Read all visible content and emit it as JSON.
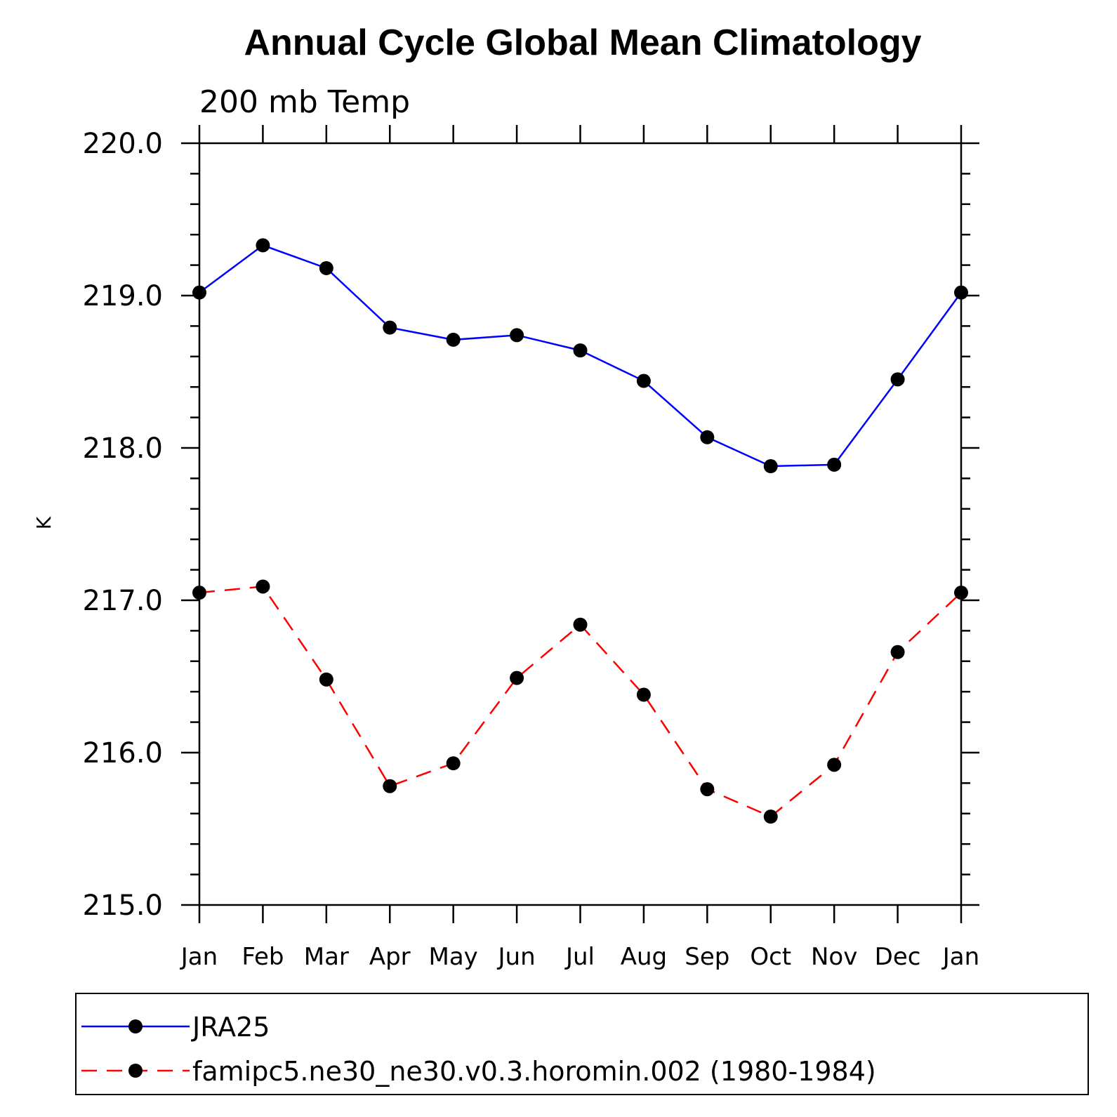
{
  "chart_data": {
    "type": "line",
    "title": "Annual Cycle Global Mean Climatology",
    "subtitle": "200 mb Temp",
    "xlabel": "",
    "ylabel": "K",
    "categories": [
      "Jan",
      "Feb",
      "Mar",
      "Apr",
      "May",
      "Jun",
      "Jul",
      "Aug",
      "Sep",
      "Oct",
      "Nov",
      "Dec",
      "Jan"
    ],
    "ylim": [
      215.0,
      220.0
    ],
    "yticks": [
      "215.0",
      "216.0",
      "217.0",
      "218.0",
      "219.0",
      "220.0"
    ],
    "grid": false,
    "legend_position": "bottom",
    "series": [
      {
        "name": "JRA25",
        "color": "#0000ff",
        "line_style": "solid",
        "marker": "filled-circle",
        "values": [
          219.02,
          219.33,
          219.18,
          218.79,
          218.71,
          218.74,
          218.64,
          218.44,
          218.07,
          217.88,
          217.89,
          218.45,
          219.02
        ]
      },
      {
        "name": "famipc5.ne30_ne30.v0.3.horomin.002 (1980-1984)",
        "color": "#ff0000",
        "line_style": "dashed",
        "marker": "filled-circle",
        "values": [
          217.05,
          217.09,
          216.48,
          215.78,
          215.93,
          216.49,
          216.84,
          216.38,
          215.76,
          215.58,
          215.92,
          216.66,
          217.05
        ]
      }
    ]
  }
}
